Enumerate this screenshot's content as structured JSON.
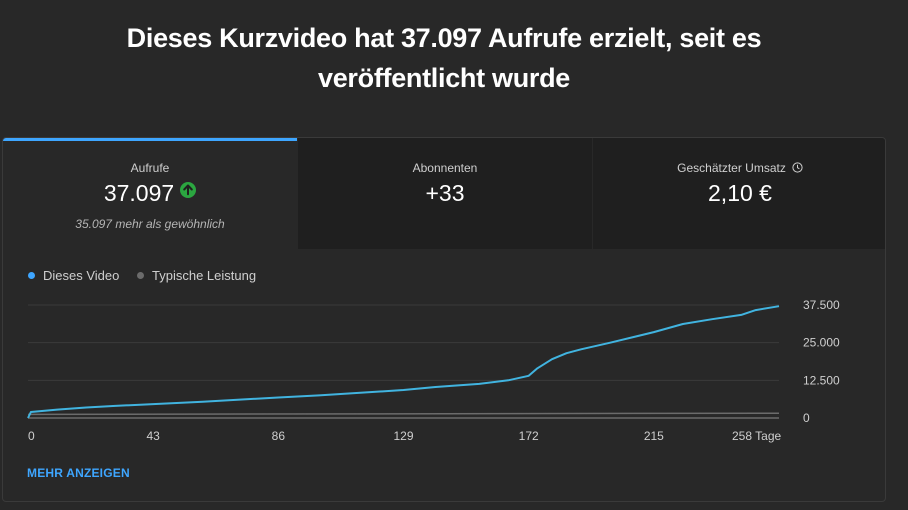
{
  "headline": {
    "line1": "Dieses Kurzvideo hat 37.097 Aufrufe erzielt, seit es",
    "line2": "veröffentlicht wurde"
  },
  "tabs": [
    {
      "label": "Aufrufe",
      "value": "37.097",
      "note": "35.097 mehr als gewöhnlich",
      "icon": "arrow-up-icon",
      "active": true
    },
    {
      "label": "Abonnenten",
      "value": "+33",
      "active": false
    },
    {
      "label": "Geschätzter Umsatz",
      "value": "2,10 €",
      "icon": "clock-icon",
      "active": false
    }
  ],
  "legend": [
    {
      "label": "Dieses Video",
      "color": "#3ea6ff"
    },
    {
      "label": "Typische Leistung",
      "color": "#6b6b6b"
    }
  ],
  "more_link": "MEHR ANZEIGEN",
  "colors": {
    "accent": "#3ea6ff",
    "line": "#41b4e0",
    "positive": "#2ba640",
    "background": "#282828",
    "tab_inactive": "#1f1f1f"
  },
  "chart_data": {
    "type": "line",
    "x_tick_labels": [
      "0",
      "43",
      "86",
      "129",
      "172",
      "215",
      "258 Tage"
    ],
    "y_tick_labels": [
      "37.500",
      "25.000",
      "12.500",
      "0"
    ],
    "xlim": [
      0,
      258
    ],
    "ylim": [
      0,
      37500
    ],
    "grid": true,
    "series": [
      {
        "name": "Dieses Video",
        "x": [
          0,
          1,
          10,
          20,
          30,
          43,
          60,
          86,
          100,
          129,
          140,
          155,
          165,
          172,
          175,
          180,
          185,
          190,
          200,
          215,
          225,
          235,
          245,
          250,
          258
        ],
        "y": [
          0,
          2000,
          2800,
          3500,
          4000,
          4600,
          5400,
          6800,
          7500,
          9300,
          10300,
          11300,
          12500,
          14000,
          16500,
          19500,
          21500,
          22800,
          25000,
          28500,
          31200,
          32800,
          34200,
          35800,
          37097
        ]
      },
      {
        "name": "Typische Leistung",
        "x": [
          0,
          258
        ],
        "y": [
          1200,
          1600
        ]
      }
    ]
  }
}
